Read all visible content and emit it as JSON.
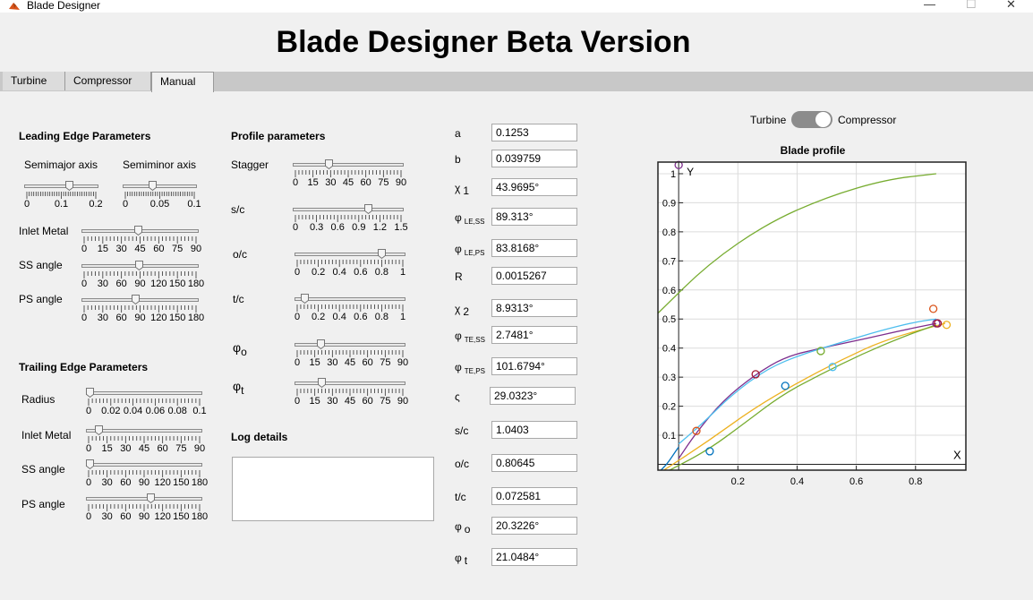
{
  "window": {
    "title": "Blade Designer",
    "controls": [
      "—",
      "☐",
      "✕"
    ]
  },
  "header": {
    "title": "Blade Designer Beta Version"
  },
  "tabs": [
    {
      "label": "Turbine"
    },
    {
      "label": "Compressor"
    },
    {
      "label": "Manual"
    }
  ],
  "leading_edge": {
    "title": "Leading Edge Parameters",
    "semimajor": {
      "label": "Semimajor axis",
      "ticks": [
        "0",
        "0.1",
        "0.2"
      ],
      "min": 0,
      "max": 0.2,
      "value": 0.1253
    },
    "semiminor": {
      "label": "Semiminor axis",
      "ticks": [
        "0",
        "0.05",
        "0.1"
      ],
      "min": 0,
      "max": 0.1,
      "value": 0.039759
    },
    "inlet_metal": {
      "label": "Inlet Metal",
      "ticks": [
        "0",
        "15",
        "30",
        "45",
        "60",
        "75",
        "90"
      ],
      "min": 0,
      "max": 90,
      "value": 43.9695
    },
    "ss_angle": {
      "label": "SS angle",
      "ticks": [
        "0",
        "30",
        "60",
        "90",
        "120",
        "150",
        "180"
      ],
      "min": 0,
      "max": 180,
      "value": 89.313
    },
    "ps_angle": {
      "label": "PS angle",
      "ticks": [
        "0",
        "30",
        "60",
        "90",
        "120",
        "150",
        "180"
      ],
      "min": 0,
      "max": 180,
      "value": 83.8168
    }
  },
  "trailing_edge": {
    "title": "Trailing Edge Parameters",
    "radius": {
      "label": "Radius",
      "ticks": [
        "0",
        "0.02",
        "0.04",
        "0.06",
        "0.08",
        "0.1"
      ],
      "min": 0,
      "max": 0.1,
      "value": 0.0015267
    },
    "inlet_metal": {
      "label": "Inlet Metal",
      "ticks": [
        "0",
        "15",
        "30",
        "45",
        "60",
        "75",
        "90"
      ],
      "min": 0,
      "max": 90,
      "value": 8.9313
    },
    "ss_angle": {
      "label": "SS angle",
      "ticks": [
        "0",
        "30",
        "60",
        "90",
        "120",
        "150",
        "180"
      ],
      "min": 0,
      "max": 180,
      "value": 2.7481
    },
    "ps_angle": {
      "label": "PS angle",
      "ticks": [
        "0",
        "30",
        "60",
        "90",
        "120",
        "150",
        "180"
      ],
      "min": 0,
      "max": 180,
      "value": 101.6794
    }
  },
  "profile": {
    "title": "Profile parameters",
    "stagger": {
      "label": "Stagger",
      "ticks": [
        "0",
        "15",
        "30",
        "45",
        "60",
        "75",
        "90"
      ],
      "min": 0,
      "max": 90,
      "value": 29.0323
    },
    "s_c": {
      "label": "s/c",
      "ticks": [
        "0",
        "0.3",
        "0.6",
        "0.9",
        "1.2",
        "1.5"
      ],
      "min": 0,
      "max": 1.5,
      "value": 1.0403
    },
    "o_c": {
      "label": "o/c",
      "ticks": [
        "0",
        "0.2",
        "0.4",
        "0.6",
        "0.8",
        "1"
      ],
      "min": 0,
      "max": 1,
      "value": 0.80645
    },
    "t_c": {
      "label": "t/c",
      "ticks": [
        "0",
        "0.2",
        "0.4",
        "0.6",
        "0.8",
        "1"
      ],
      "min": 0,
      "max": 1,
      "value": 0.072581
    },
    "phi_o": {
      "label": "φ",
      "sub": "o",
      "ticks": [
        "0",
        "15",
        "30",
        "45",
        "60",
        "75",
        "90"
      ],
      "min": 0,
      "max": 90,
      "value": 20.3226
    },
    "phi_t": {
      "label": "φ",
      "sub": "t",
      "ticks": [
        "0",
        "15",
        "30",
        "45",
        "60",
        "75",
        "90"
      ],
      "min": 0,
      "max": 90,
      "value": 21.0484
    }
  },
  "log": {
    "title": "Log details",
    "content": ""
  },
  "params": [
    {
      "name": "a",
      "sub": "",
      "value": "0.1253"
    },
    {
      "name": "b",
      "sub": "",
      "value": "0.039759"
    },
    {
      "name": "χ",
      "sub": "1",
      "value": "43.9695°"
    },
    {
      "name": "φ",
      "sub": "LE,SS",
      "value": "89.313°"
    },
    {
      "name": "φ",
      "sub": "LE,PS",
      "value": "83.8168°"
    },
    {
      "name": "R",
      "sub": "",
      "value": "0.0015267"
    },
    {
      "name": "χ",
      "sub": "2",
      "value": "8.9313°"
    },
    {
      "name": "φ",
      "sub": "TE,SS",
      "value": "2.7481°"
    },
    {
      "name": "φ",
      "sub": "TE,PS",
      "value": "101.6794°"
    },
    {
      "name": "ς",
      "sub": "",
      "value": "29.0323°"
    },
    {
      "name": "s/c",
      "sub": "",
      "value": "1.0403"
    },
    {
      "name": "o/c",
      "sub": "",
      "value": "0.80645"
    },
    {
      "name": "t/c",
      "sub": "",
      "value": "0.072581"
    },
    {
      "name": "φ",
      "sub": "o",
      "value": "20.3226°"
    },
    {
      "name": "φ",
      "sub": "t",
      "value": "21.0484°"
    }
  ],
  "switch": {
    "left_label": "Turbine",
    "right_label": "Compressor",
    "state": "Compressor"
  },
  "chart_data": {
    "type": "line",
    "title": "Blade profile",
    "xlabel": "X",
    "ylabel": "Y",
    "xlim": [
      -0.07,
      0.97
    ],
    "ylim": [
      -0.02,
      1.04
    ],
    "xticks": [
      0.2,
      0.4,
      0.6,
      0.8
    ],
    "yticks": [
      0.1,
      0.2,
      0.3,
      0.4,
      0.5,
      0.6,
      0.7,
      0.8,
      0.9,
      1
    ],
    "grid": true,
    "series": [
      {
        "color": "#77ac30",
        "points": [
          [
            -0.07,
            0.52
          ],
          [
            0.1,
            0.69
          ],
          [
            0.3,
            0.83
          ],
          [
            0.5,
            0.92
          ],
          [
            0.7,
            0.98
          ],
          [
            0.87,
            1.0
          ]
        ]
      },
      {
        "color": "#7e2f8e",
        "points": [
          [
            0.0,
            0.02
          ],
          [
            0.06,
            0.11
          ],
          [
            0.15,
            0.22
          ],
          [
            0.26,
            0.31
          ],
          [
            0.36,
            0.37
          ],
          [
            0.48,
            0.4
          ],
          [
            0.62,
            0.43
          ],
          [
            0.75,
            0.46
          ],
          [
            0.87,
            0.485
          ]
        ]
      },
      {
        "color": "#4dbeee",
        "points": [
          [
            0.0,
            0.07
          ],
          [
            0.08,
            0.14
          ],
          [
            0.18,
            0.24
          ],
          [
            0.3,
            0.33
          ],
          [
            0.42,
            0.38
          ],
          [
            0.55,
            0.42
          ],
          [
            0.68,
            0.46
          ],
          [
            0.8,
            0.49
          ],
          [
            0.87,
            0.5
          ]
        ]
      },
      {
        "color": "#edb120",
        "points": [
          [
            -0.05,
            -0.02
          ],
          [
            0.1,
            0.08
          ],
          [
            0.25,
            0.19
          ],
          [
            0.4,
            0.28
          ],
          [
            0.55,
            0.36
          ],
          [
            0.7,
            0.43
          ],
          [
            0.9,
            0.485
          ]
        ]
      },
      {
        "color": "#77ac30",
        "points": [
          [
            -0.03,
            -0.02
          ],
          [
            0.1,
            0.05
          ],
          [
            0.22,
            0.14
          ],
          [
            0.35,
            0.24
          ],
          [
            0.48,
            0.31
          ],
          [
            0.62,
            0.38
          ],
          [
            0.76,
            0.44
          ],
          [
            0.87,
            0.48
          ]
        ]
      },
      {
        "color": "#0072bd",
        "points": [
          [
            -0.07,
            -0.03
          ],
          [
            -0.04,
            0.0
          ],
          [
            -0.02,
            0.03
          ],
          [
            0.0,
            0.06
          ]
        ]
      }
    ],
    "markers": [
      {
        "x": 0.0,
        "y": 1.03,
        "color": "#7e2f8e"
      },
      {
        "x": 0.06,
        "y": 0.115,
        "color": "#d95319"
      },
      {
        "x": 0.105,
        "y": 0.045,
        "color": "#0072bd"
      },
      {
        "x": 0.26,
        "y": 0.31,
        "color": "#a2142f"
      },
      {
        "x": 0.36,
        "y": 0.27,
        "color": "#0072bd"
      },
      {
        "x": 0.48,
        "y": 0.39,
        "color": "#77ac30"
      },
      {
        "x": 0.52,
        "y": 0.335,
        "color": "#4dbeee"
      },
      {
        "x": 0.86,
        "y": 0.535,
        "color": "#d95319"
      },
      {
        "x": 0.87,
        "y": 0.485,
        "color": "#7e2f8e"
      },
      {
        "x": 0.905,
        "y": 0.48,
        "color": "#edb120"
      },
      {
        "x": 0.875,
        "y": 0.485,
        "color": "#a2142f"
      }
    ]
  }
}
